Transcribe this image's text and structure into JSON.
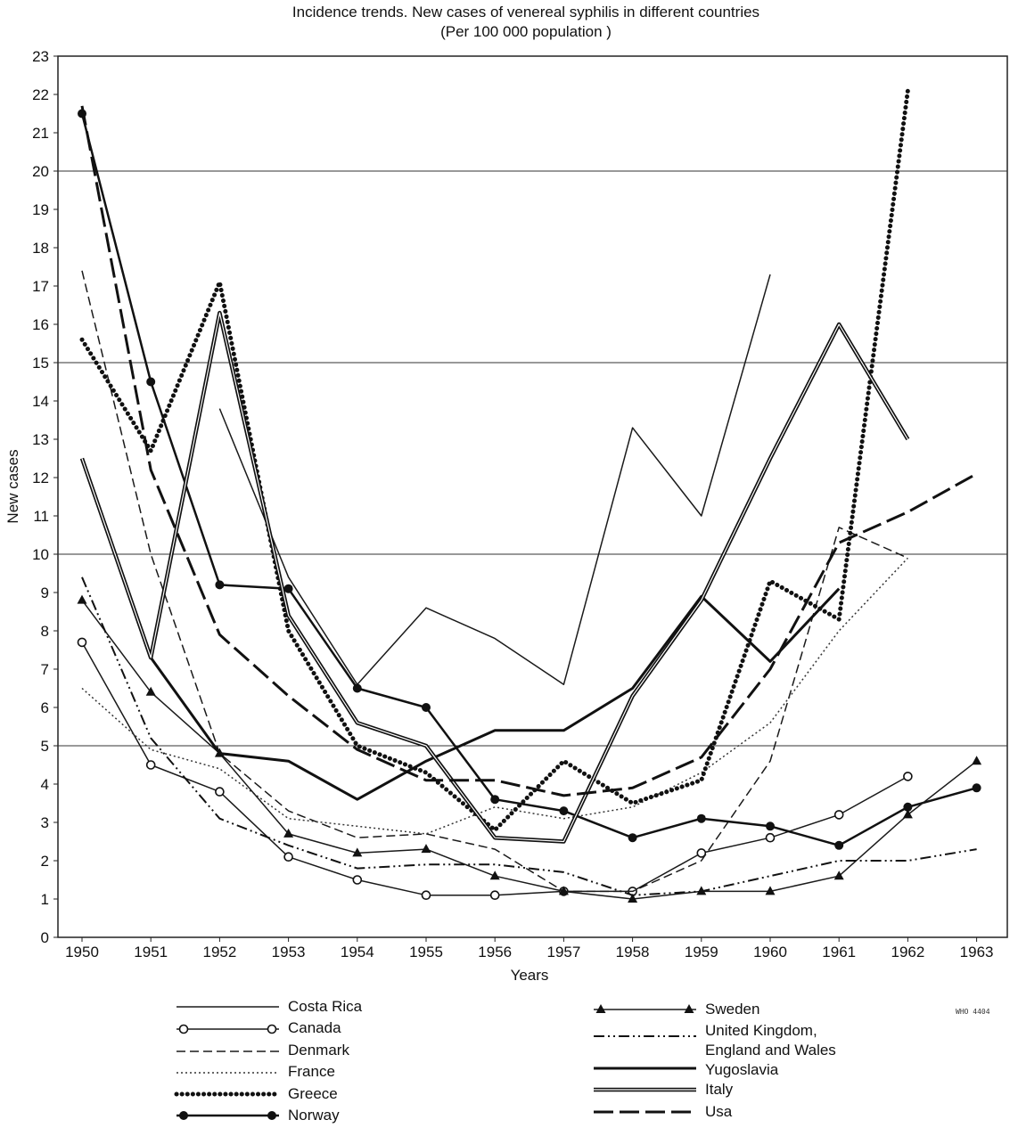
{
  "chart_data": {
    "type": "line",
    "title": "Incidence trends. New cases of venereal syphilis in different countries",
    "subtitle": "(Per 100 000 population )",
    "xlabel": "Years",
    "ylabel": "New cases",
    "ylim": [
      0,
      23
    ],
    "yticks": [
      0,
      1,
      2,
      3,
      4,
      5,
      6,
      7,
      8,
      9,
      10,
      11,
      12,
      13,
      14,
      15,
      16,
      17,
      18,
      19,
      20,
      21,
      22,
      23
    ],
    "x": [
      1950,
      1951,
      1952,
      1953,
      1954,
      1955,
      1956,
      1957,
      1958,
      1959,
      1960,
      1961,
      1962,
      1963
    ],
    "grid": "horizontal lines at 5, 10, 15, 20",
    "legend_position": "bottom",
    "series": [
      {
        "name": "Costa Rica",
        "values": [
          null,
          null,
          13.8,
          9.4,
          6.6,
          8.6,
          7.8,
          6.6,
          13.3,
          11.0,
          17.3,
          null,
          null,
          null
        ]
      },
      {
        "name": "Canada",
        "values": [
          7.7,
          4.5,
          3.8,
          2.1,
          1.5,
          1.1,
          1.1,
          1.2,
          1.2,
          2.2,
          2.6,
          3.2,
          4.2,
          null
        ]
      },
      {
        "name": "Denmark",
        "values": [
          17.4,
          10.0,
          4.8,
          3.3,
          2.6,
          2.7,
          2.3,
          1.2,
          1.2,
          2.0,
          4.6,
          10.7,
          9.9,
          null
        ]
      },
      {
        "name": "France",
        "values": [
          6.5,
          4.9,
          4.4,
          3.1,
          2.9,
          2.7,
          3.4,
          3.1,
          3.4,
          4.3,
          5.6,
          8.0,
          9.9,
          null
        ]
      },
      {
        "name": "Greece",
        "values": [
          15.6,
          12.7,
          17.1,
          8.0,
          5.0,
          4.3,
          2.8,
          4.6,
          3.5,
          4.1,
          9.3,
          8.3,
          22.1,
          null
        ]
      },
      {
        "name": "Norway",
        "values": [
          21.5,
          14.5,
          9.2,
          9.1,
          6.5,
          6.0,
          3.6,
          3.3,
          2.6,
          3.1,
          2.9,
          2.4,
          3.4,
          3.9
        ]
      },
      {
        "name": "Sweden",
        "values": [
          8.8,
          6.4,
          4.8,
          2.7,
          2.2,
          2.3,
          1.6,
          1.2,
          1.0,
          1.2,
          1.2,
          1.6,
          3.2,
          4.6
        ]
      },
      {
        "name": "United Kingdom, England and Wales",
        "values": [
          9.4,
          5.2,
          3.1,
          2.4,
          1.8,
          1.9,
          1.9,
          1.7,
          1.1,
          1.2,
          1.6,
          2.0,
          2.0,
          2.3
        ]
      },
      {
        "name": "Yugoslavia",
        "values": [
          12.5,
          7.3,
          4.8,
          4.6,
          3.6,
          4.6,
          5.4,
          5.4,
          6.5,
          8.9,
          7.2,
          9.1,
          null,
          null
        ]
      },
      {
        "name": "Italy",
        "values": [
          12.5,
          7.3,
          16.3,
          8.4,
          5.6,
          5.0,
          2.6,
          2.5,
          6.3,
          8.8,
          12.5,
          16.0,
          13.0,
          null
        ]
      },
      {
        "name": "Usa",
        "values": [
          21.7,
          12.2,
          7.9,
          6.3,
          4.9,
          4.1,
          4.1,
          3.7,
          3.9,
          4.7,
          7.0,
          10.3,
          11.1,
          12.1
        ]
      }
    ]
  },
  "legend": {
    "left": [
      {
        "key": "costa",
        "label": "Costa Rica"
      },
      {
        "key": "canada",
        "label": "Canada"
      },
      {
        "key": "denmark",
        "label": "Denmark"
      },
      {
        "key": "france",
        "label": "France"
      },
      {
        "key": "greece",
        "label": "Greece"
      },
      {
        "key": "norway",
        "label": "Norway"
      }
    ],
    "right": [
      {
        "key": "sweden",
        "label": "Sweden"
      },
      {
        "key": "uk",
        "label": "United Kingdom,",
        "label2": "England and Wales"
      },
      {
        "key": "yugoslavia",
        "label": "Yugoslavia"
      },
      {
        "key": "italy",
        "label": "Italy"
      },
      {
        "key": "usa",
        "label": "Usa"
      }
    ]
  },
  "stamp": "WHO 4404"
}
